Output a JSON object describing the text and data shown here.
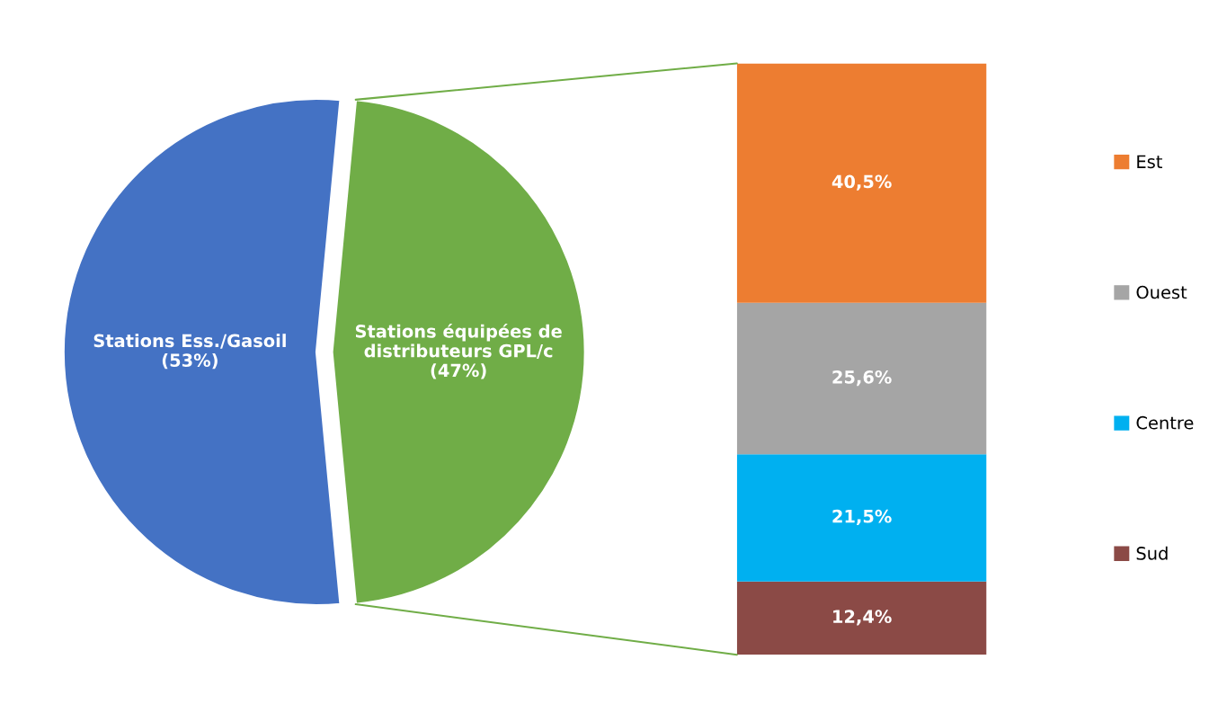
{
  "chart_data": [
    {
      "type": "pie",
      "categories": [
        "Stations Ess./Gasoil",
        "Stations équipées de\ndistributeurs GPL/c"
      ],
      "values": [
        53,
        47
      ],
      "colors": [
        "#4472c4",
        "#70ad47"
      ],
      "value_labels": [
        "(53%)",
        "(47%)"
      ]
    },
    {
      "type": "bar",
      "stacked": true,
      "categories": [
        null
      ],
      "tick_labels": false,
      "legend": "right",
      "series": [
        {
          "name": "Sud",
          "color": "#8b4a46",
          "values": [
            12.4
          ],
          "value_labels": [
            "12,4%"
          ]
        },
        {
          "name": "Centre",
          "color": "#00b0f0",
          "values": [
            21.5
          ],
          "value_labels": [
            "21,5%"
          ]
        },
        {
          "name": "Ouest",
          "color": "#a5a5a5",
          "values": [
            25.6
          ],
          "value_labels": [
            "25,6%"
          ]
        },
        {
          "name": "Est",
          "color": "#ed7d31",
          "values": [
            40.5
          ],
          "value_labels": [
            "40,5%"
          ]
        }
      ]
    }
  ]
}
